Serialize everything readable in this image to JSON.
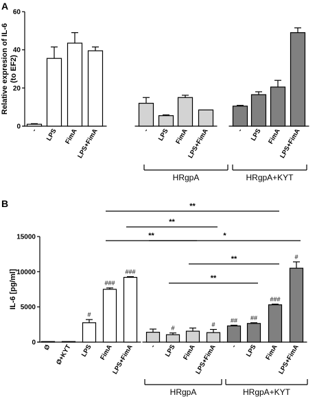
{
  "colors": {
    "white_bar": "#ffffff",
    "light_gray_bar": "#d3d3d3",
    "dark_gray_bar": "#808080",
    "stroke": "#000000"
  },
  "chart_data": [
    {
      "panel": "A",
      "type": "bar",
      "ylabel": "Relative expresion of IL-6 (to EF2)",
      "ylabel_lines": [
        "Relative expresion of IL-6",
        "(to EF2)"
      ],
      "ylim": [
        0,
        60
      ],
      "yticks": [
        0,
        20,
        40,
        60
      ],
      "groups": [
        {
          "label": "",
          "color": "white",
          "categories": [
            "-",
            "LPS",
            "FimA",
            "LPS+FimA"
          ],
          "values": [
            1,
            35.5,
            43.5,
            39.5
          ],
          "errors": [
            0.3,
            6,
            5.5,
            2
          ]
        },
        {
          "label": "HRgpA",
          "color": "lightgray",
          "categories": [
            "-",
            "LPS",
            "FimA",
            "LPS+FimA"
          ],
          "values": [
            12,
            5.5,
            15,
            8.5
          ],
          "errors": [
            3,
            0.4,
            1.2,
            0
          ]
        },
        {
          "label": "HRgpA+KYT",
          "color": "darkgray",
          "categories": [
            "-",
            "LPS",
            "FimA",
            "LPS+FimA"
          ],
          "values": [
            10.5,
            16.5,
            20.5,
            49
          ],
          "errors": [
            0.4,
            1.5,
            3.5,
            2.5
          ]
        }
      ]
    },
    {
      "panel": "B",
      "type": "bar",
      "ylabel": "IL-6 [pg/ml]",
      "ylim": [
        0,
        15000
      ],
      "yticks": [
        0,
        5000,
        10000,
        15000
      ],
      "groups": [
        {
          "label": "",
          "color": "white",
          "categories": [
            "Ø",
            "Ø+KYT",
            "LPS",
            "FimA",
            "LPS+FimA"
          ],
          "values": [
            50,
            50,
            2750,
            7500,
            9200
          ],
          "errors": [
            0,
            0,
            450,
            200,
            100
          ],
          "annotations": [
            "",
            "",
            "#",
            "###",
            "###"
          ]
        },
        {
          "label": "HRgpA",
          "color": "lightgray",
          "categories": [
            "-",
            "LPS",
            "FimA",
            "LPS+FimA"
          ],
          "values": [
            1400,
            1050,
            1550,
            1350
          ],
          "errors": [
            450,
            250,
            450,
            450
          ],
          "annotations": [
            "",
            "#",
            "",
            "#"
          ]
        },
        {
          "label": "HRgpA+KYT",
          "color": "darkgray",
          "categories": [
            "-",
            "LPS",
            "FimA",
            "LPS+FimA"
          ],
          "values": [
            2300,
            2650,
            5300,
            10500
          ],
          "errors": [
            100,
            100,
            100,
            900
          ],
          "annotations": [
            "##",
            "##",
            "###",
            "#"
          ]
        }
      ],
      "significance": [
        {
          "from": "FimA",
          "to": "HRgpA+KYT FimA",
          "label": "**"
        },
        {
          "from": "LPS+FimA",
          "to": "HRgpA LPS+FimA",
          "label": "**"
        },
        {
          "from": "FimA",
          "to": "HRgpA FimA",
          "label": "**"
        },
        {
          "from": "HRgpA -",
          "to": "HRgpA+KYT LPS+FimA",
          "label": "*"
        },
        {
          "from": "HRgpA FimA",
          "to": "HRgpA+KYT FimA",
          "label": "**"
        },
        {
          "from": "HRgpA LPS",
          "to": "HRgpA+KYT LPS",
          "label": "**"
        }
      ]
    }
  ]
}
